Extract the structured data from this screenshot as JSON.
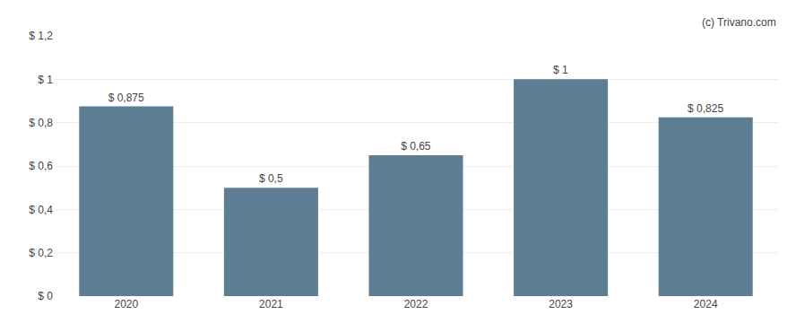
{
  "chart_data": {
    "type": "bar",
    "categories": [
      "2020",
      "2021",
      "2022",
      "2023",
      "2024"
    ],
    "values": [
      0.875,
      0.5,
      0.65,
      1.0,
      0.825
    ],
    "value_labels": [
      "$ 0,875",
      "$ 0,5",
      "$ 0,65",
      "$ 1",
      "$ 0,825"
    ],
    "data_labels": true,
    "color": "#5e7f93",
    "ylim": [
      0,
      1.2
    ],
    "yticks": [
      {
        "value": 0,
        "label": "$ 0"
      },
      {
        "value": 0.2,
        "label": "$ 0,2"
      },
      {
        "value": 0.4,
        "label": "$ 0,4"
      },
      {
        "value": 0.6,
        "label": "$ 0,6"
      },
      {
        "value": 0.8,
        "label": "$ 0,8"
      },
      {
        "value": 1.0,
        "label": "$ 1"
      },
      {
        "value": 1.2,
        "label": "$ 1,2"
      }
    ],
    "grid": true,
    "annotations": [
      "(c) Trivano.com"
    ]
  }
}
